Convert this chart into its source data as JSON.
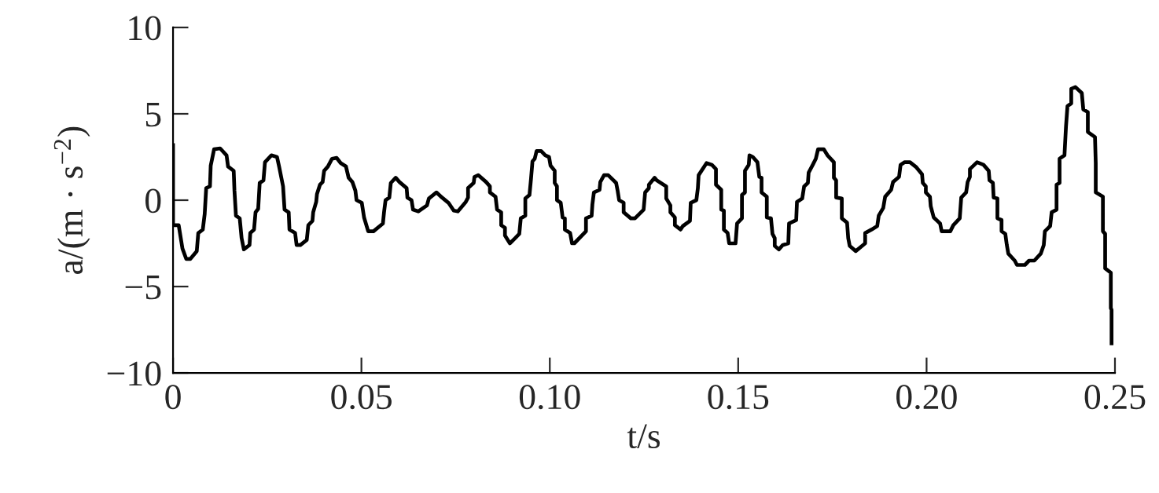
{
  "chart_data": {
    "type": "line",
    "xlabel": "t/s",
    "ylabel": "a/(m · s$^{−2}$)",
    "xlim": [
      0,
      0.25
    ],
    "ylim": [
      -10,
      10
    ],
    "xticks": [
      0,
      0.05,
      {
        "value": 0.1,
        "label": "0.10"
      },
      0.15,
      {
        "value": 0.2,
        "label": "0.20"
      },
      0.25
    ],
    "yticks": [
      {
        "value": -10,
        "label": "−10"
      },
      {
        "value": -5,
        "label": "−5"
      },
      0,
      5,
      10
    ],
    "marker": "none",
    "line_style": "solid",
    "x": [
      0,
      0,
      0.0015,
      0.0025,
      0.0035,
      0.0046,
      0.0063,
      0.0067,
      0.0079,
      0.0084,
      0.0088,
      0.0098,
      0.01,
      0.0109,
      0.0125,
      0.0142,
      0.0146,
      0.0161,
      0.0163,
      0.0167,
      0.0177,
      0.0182,
      0.0188,
      0.0203,
      0.0205,
      0.0215,
      0.0219,
      0.0226,
      0.023,
      0.024,
      0.0244,
      0.0261,
      0.0276,
      0.0282,
      0.0292,
      0.0296,
      0.0307,
      0.0309,
      0.0324,
      0.0328,
      0.0338,
      0.0355,
      0.0359,
      0.037,
      0.0372,
      0.038,
      0.0382,
      0.039,
      0.0397,
      0.0401,
      0.0411,
      0.0422,
      0.0434,
      0.0445,
      0.0459,
      0.0466,
      0.0476,
      0.0484,
      0.0487,
      0.0501,
      0.0507,
      0.0518,
      0.0532,
      0.0557,
      0.056,
      0.0564,
      0.0574,
      0.0578,
      0.0591,
      0.0601,
      0.062,
      0.0622,
      0.0633,
      0.0637,
      0.0651,
      0.0674,
      0.0679,
      0.0699,
      0.0714,
      0.0731,
      0.0745,
      0.0756,
      0.0777,
      0.0783,
      0.0783,
      0.0798,
      0.08,
      0.081,
      0.0831,
      0.0841,
      0.0841,
      0.0856,
      0.086,
      0.0871,
      0.0871,
      0.0881,
      0.0881,
      0.0894,
      0.0908,
      0.0919,
      0.0923,
      0.0935,
      0.0935,
      0.0946,
      0.095,
      0.0954,
      0.096,
      0.0965,
      0.0977,
      0.0988,
      0.0998,
      0.1002,
      0.1013,
      0.1013,
      0.1019,
      0.1019,
      0.1029,
      0.1034,
      0.104,
      0.104,
      0.1054,
      0.1059,
      0.1065,
      0.1096,
      0.1096,
      0.1111,
      0.1113,
      0.1117,
      0.1132,
      0.1134,
      0.1144,
      0.1155,
      0.1176,
      0.118,
      0.1184,
      0.1196,
      0.1196,
      0.1215,
      0.1226,
      0.1249,
      0.1253,
      0.1263,
      0.1263,
      0.1278,
      0.1284,
      0.1309,
      0.1309,
      0.132,
      0.132,
      0.1332,
      0.1332,
      0.1347,
      0.1353,
      0.1372,
      0.1374,
      0.1389,
      0.1393,
      0.1395,
      0.1416,
      0.143,
      0.1441,
      0.1441,
      0.1455,
      0.1455,
      0.1462,
      0.1462,
      0.1472,
      0.1476,
      0.1493,
      0.1497,
      0.151,
      0.151,
      0.1518,
      0.1518,
      0.1528,
      0.153,
      0.1539,
      0.1551,
      0.1556,
      0.1562,
      0.1562,
      0.1576,
      0.1576,
      0.1587,
      0.1591,
      0.1597,
      0.1597,
      0.1608,
      0.1618,
      0.1633,
      0.1635,
      0.1654,
      0.1656,
      0.167,
      0.1675,
      0.1685,
      0.1687,
      0.1698,
      0.1706,
      0.1712,
      0.1727,
      0.1737,
      0.1754,
      0.1754,
      0.176,
      0.176,
      0.1775,
      0.1775,
      0.1789,
      0.1792,
      0.1796,
      0.1812,
      0.1837,
      0.1837,
      0.1854,
      0.1869,
      0.1873,
      0.1885,
      0.189,
      0.1906,
      0.1911,
      0.1927,
      0.1931,
      0.1942,
      0.1956,
      0.1973,
      0.1988,
      0.199,
      0.1998,
      0.1998,
      0.2009,
      0.2011,
      0.2019,
      0.2036,
      0.204,
      0.2063,
      0.2071,
      0.2088,
      0.2092,
      0.2105,
      0.2109,
      0.2115,
      0.2115,
      0.2134,
      0.2151,
      0.2165,
      0.2167,
      0.2176,
      0.2178,
      0.2188,
      0.2188,
      0.2199,
      0.2199,
      0.2209,
      0.2213,
      0.2217,
      0.2234,
      0.224,
      0.2261,
      0.2272,
      0.2286,
      0.2303,
      0.2311,
      0.2314,
      0.2328,
      0.2332,
      0.2345,
      0.2345,
      0.2353,
      0.2353,
      0.2366,
      0.237,
      0.2374,
      0.2384,
      0.2384,
      0.2395,
      0.2412,
      0.2416,
      0.2428,
      0.2428,
      0.2447,
      0.2449,
      0.2449,
      0.2468,
      0.2468,
      0.2474,
      0.2474,
      0.2489,
      0.2489,
      0.2491,
      0.2491
    ],
    "series": [
      {
        "color": "#000000",
        "values": [
          3.3,
          -1.45,
          -1.45,
          -2.8,
          -3.4,
          -3.4,
          -2.95,
          -1.9,
          -1.7,
          -0.8,
          0.7,
          0.8,
          2.0,
          2.95,
          3.0,
          2.6,
          1.95,
          1.7,
          0.55,
          -0.9,
          -1.05,
          -2.2,
          -2.85,
          -2.6,
          -1.9,
          -1.7,
          -0.7,
          -0.5,
          1.0,
          1.15,
          2.2,
          2.6,
          2.5,
          1.9,
          0.8,
          -0.55,
          -0.7,
          -1.7,
          -1.9,
          -2.6,
          -2.6,
          -2.3,
          -1.45,
          -1.2,
          -0.7,
          -0.1,
          0.35,
          0.9,
          1.05,
          1.7,
          1.95,
          2.4,
          2.45,
          2.15,
          1.95,
          1.3,
          1.05,
          0.55,
          0,
          -0.15,
          -1.0,
          -1.8,
          -1.8,
          -1.35,
          -0.7,
          0,
          0.15,
          1.0,
          1.3,
          1.05,
          0.7,
          0.15,
          0,
          -0.55,
          -0.65,
          -0.3,
          0.1,
          0.45,
          0.15,
          -0.15,
          -0.6,
          -0.65,
          -0.1,
          0.15,
          0.7,
          1.0,
          1.35,
          1.45,
          1.05,
          0.8,
          0.45,
          0.2,
          -0.55,
          -0.7,
          -1.45,
          -1.6,
          -2.05,
          -2.5,
          -2.2,
          -1.95,
          -1.05,
          -0.9,
          0.1,
          0.3,
          1.2,
          2.25,
          2.4,
          2.85,
          2.85,
          2.6,
          2.5,
          2.0,
          1.7,
          1.0,
          0.8,
          0,
          -0.15,
          -1.0,
          -1.05,
          -1.7,
          -1.9,
          -2.5,
          -2.5,
          -1.8,
          -1.05,
          -0.9,
          -0.25,
          0.45,
          0.6,
          1.05,
          1.45,
          1.45,
          1.0,
          0.55,
          0,
          -0.15,
          -0.7,
          -1.05,
          -1.05,
          -0.55,
          0.45,
          0.7,
          0.9,
          1.3,
          1.15,
          0.8,
          0.1,
          -0.3,
          -0.7,
          -1.0,
          -1.45,
          -1.7,
          -1.5,
          -1.2,
          -0.15,
          0,
          0.7,
          1.45,
          2.15,
          2.05,
          1.8,
          0.9,
          0.6,
          -0.55,
          -0.6,
          -1.7,
          -1.9,
          -2.5,
          -2.5,
          -1.35,
          -1.05,
          0.3,
          0.45,
          1.7,
          2.05,
          2.6,
          2.5,
          2.2,
          1.35,
          1.3,
          0.45,
          0.2,
          -1.0,
          -1.05,
          -1.95,
          -2.2,
          -2.65,
          -2.85,
          -2.6,
          -2.5,
          -1.35,
          -1.15,
          -0.1,
          0.1,
          0.8,
          1.0,
          1.6,
          2.05,
          2.4,
          2.95,
          2.95,
          2.6,
          2.2,
          1.3,
          1.15,
          0.15,
          0.1,
          -1.05,
          -1.3,
          -2.2,
          -2.65,
          -2.95,
          -2.5,
          -1.9,
          -1.7,
          -1.5,
          -0.9,
          -0.45,
          0.2,
          0.6,
          1.05,
          1.35,
          2.05,
          2.2,
          2.2,
          1.9,
          1.5,
          1.0,
          0.8,
          0.45,
          0.2,
          -0.35,
          -1.0,
          -1.35,
          -1.8,
          -1.8,
          -1.45,
          -1.05,
          0.15,
          0.45,
          1.05,
          1.35,
          1.8,
          2.2,
          2.05,
          1.7,
          1.15,
          1.0,
          0.15,
          0.1,
          -1.05,
          -1.15,
          -1.8,
          -1.95,
          -2.6,
          -3.1,
          -3.5,
          -3.75,
          -3.75,
          -3.5,
          -3.5,
          -3.1,
          -2.6,
          -1.8,
          -1.5,
          -0.7,
          -0.55,
          0.9,
          1.0,
          2.4,
          2.6,
          4.25,
          5.45,
          5.6,
          6.45,
          6.55,
          6.2,
          5.25,
          5.1,
          3.95,
          3.65,
          2.15,
          0.45,
          0.2,
          -1.8,
          -1.95,
          -3.95,
          -4.2,
          -6.25,
          -6.35,
          -8.4
        ]
      }
    ]
  }
}
